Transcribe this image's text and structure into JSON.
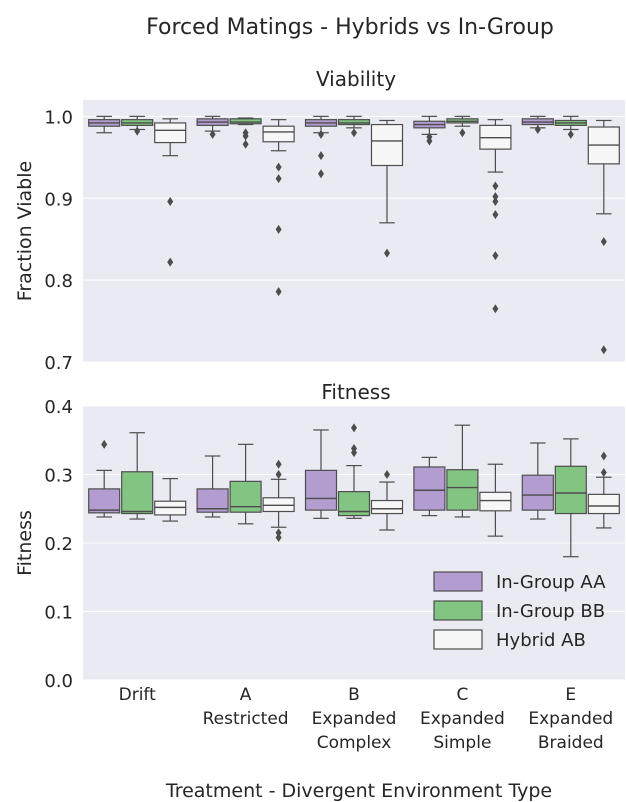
{
  "chart_data": {
    "type": "box",
    "title": "Forced Matings - Hybrids vs In-Group",
    "xlabel": "Treatment - Divergent Environment Type",
    "categories": [
      [
        "Drift"
      ],
      [
        "A",
        "Restricted"
      ],
      [
        "B",
        "Expanded",
        "Complex"
      ],
      [
        "C",
        "Expanded",
        "Simple"
      ],
      [
        "E",
        "Expanded",
        "Braided"
      ]
    ],
    "legend": {
      "placement": "lower-right",
      "entries": [
        "In-Group AA",
        "In-Group BB",
        "Hybrid AB"
      ]
    },
    "colors": {
      "aa": "#b39cd0",
      "bb": "#82c582",
      "ab": "#f7f7f7",
      "background": "#eaeaf2",
      "line": "#4d4d4d"
    },
    "subplots": [
      {
        "title": "Viability",
        "ylabel": "Fraction Viable",
        "ylim": [
          0.7,
          1.02
        ],
        "yticks": [
          "0.7",
          "0.8",
          "0.9",
          "1.0"
        ],
        "series": [
          {
            "name": "In-Group AA",
            "boxes": [
              {
                "whislo": 0.98,
                "q1": 0.988,
                "med": 0.992,
                "q3": 0.996,
                "whishi": 1.0,
                "fliers": []
              },
              {
                "whislo": 0.982,
                "q1": 0.989,
                "med": 0.993,
                "q3": 0.997,
                "whishi": 1.0,
                "fliers": [
                  0.978
                ]
              },
              {
                "whislo": 0.98,
                "q1": 0.988,
                "med": 0.992,
                "q3": 0.996,
                "whishi": 1.0,
                "fliers": [
                  0.978,
                  0.952,
                  0.93
                ]
              },
              {
                "whislo": 0.978,
                "q1": 0.986,
                "med": 0.99,
                "q3": 0.994,
                "whishi": 1.0,
                "fliers": [
                  0.975,
                  0.97
                ]
              },
              {
                "whislo": 0.986,
                "q1": 0.99,
                "med": 0.993,
                "q3": 0.997,
                "whishi": 1.0,
                "fliers": [
                  0.984
                ]
              }
            ]
          },
          {
            "name": "In-Group BB",
            "boxes": [
              {
                "whislo": 0.984,
                "q1": 0.989,
                "med": 0.992,
                "q3": 0.996,
                "whishi": 1.0,
                "fliers": [
                  0.982
                ]
              },
              {
                "whislo": 0.99,
                "q1": 0.991,
                "med": 0.993,
                "q3": 0.997,
                "whishi": 0.998,
                "fliers": [
                  0.98,
                  0.976,
                  0.966
                ]
              },
              {
                "whislo": 0.986,
                "q1": 0.99,
                "med": 0.992,
                "q3": 0.996,
                "whishi": 1.0,
                "fliers": [
                  0.98
                ]
              },
              {
                "whislo": 0.988,
                "q1": 0.992,
                "med": 0.994,
                "q3": 0.997,
                "whishi": 1.0,
                "fliers": [
                  0.98
                ]
              },
              {
                "whislo": 0.984,
                "q1": 0.989,
                "med": 0.992,
                "q3": 0.995,
                "whishi": 1.0,
                "fliers": [
                  0.978
                ]
              }
            ]
          },
          {
            "name": "Hybrid AB",
            "boxes": [
              {
                "whislo": 0.952,
                "q1": 0.968,
                "med": 0.983,
                "q3": 0.992,
                "whishi": 0.997,
                "fliers": [
                  0.896,
                  0.822
                ]
              },
              {
                "whislo": 0.958,
                "q1": 0.969,
                "med": 0.981,
                "q3": 0.988,
                "whishi": 0.996,
                "fliers": [
                  0.938,
                  0.924,
                  0.862,
                  0.786
                ]
              },
              {
                "whislo": 0.87,
                "q1": 0.94,
                "med": 0.97,
                "q3": 0.99,
                "whishi": 0.995,
                "fliers": [
                  0.833
                ]
              },
              {
                "whislo": 0.932,
                "q1": 0.96,
                "med": 0.974,
                "q3": 0.989,
                "whishi": 0.996,
                "fliers": [
                  0.915,
                  0.902,
                  0.896,
                  0.88,
                  0.83,
                  0.765
                ]
              },
              {
                "whislo": 0.881,
                "q1": 0.942,
                "med": 0.965,
                "q3": 0.987,
                "whishi": 0.995,
                "fliers": [
                  0.847,
                  0.715
                ]
              }
            ]
          }
        ]
      },
      {
        "title": "Fitness",
        "ylabel": "Fitness",
        "ylim": [
          0.0,
          0.4
        ],
        "yticks": [
          "0.0",
          "0.1",
          "0.2",
          "0.3",
          "0.4"
        ],
        "series": [
          {
            "name": "In-Group AA",
            "boxes": [
              {
                "whislo": 0.238,
                "q1": 0.244,
                "med": 0.248,
                "q3": 0.279,
                "whishi": 0.306,
                "fliers": [
                  0.344
                ]
              },
              {
                "whislo": 0.238,
                "q1": 0.245,
                "med": 0.25,
                "q3": 0.279,
                "whishi": 0.327,
                "fliers": []
              },
              {
                "whislo": 0.236,
                "q1": 0.248,
                "med": 0.265,
                "q3": 0.306,
                "whishi": 0.365,
                "fliers": []
              },
              {
                "whislo": 0.24,
                "q1": 0.248,
                "med": 0.277,
                "q3": 0.311,
                "whishi": 0.325,
                "fliers": []
              },
              {
                "whislo": 0.235,
                "q1": 0.248,
                "med": 0.27,
                "q3": 0.299,
                "whishi": 0.346,
                "fliers": []
              }
            ]
          },
          {
            "name": "In-Group BB",
            "boxes": [
              {
                "whislo": 0.235,
                "q1": 0.243,
                "med": 0.246,
                "q3": 0.304,
                "whishi": 0.361,
                "fliers": []
              },
              {
                "whislo": 0.228,
                "q1": 0.245,
                "med": 0.253,
                "q3": 0.29,
                "whishi": 0.344,
                "fliers": []
              },
              {
                "whislo": 0.236,
                "q1": 0.24,
                "med": 0.246,
                "q3": 0.275,
                "whishi": 0.313,
                "fliers": [
                  0.368,
                  0.338,
                  0.332
                ]
              },
              {
                "whislo": 0.238,
                "q1": 0.248,
                "med": 0.281,
                "q3": 0.307,
                "whishi": 0.372,
                "fliers": []
              },
              {
                "whislo": 0.18,
                "q1": 0.243,
                "med": 0.273,
                "q3": 0.312,
                "whishi": 0.352,
                "fliers": []
              }
            ]
          },
          {
            "name": "Hybrid AB",
            "boxes": [
              {
                "whislo": 0.232,
                "q1": 0.241,
                "med": 0.252,
                "q3": 0.261,
                "whishi": 0.294,
                "fliers": []
              },
              {
                "whislo": 0.223,
                "q1": 0.246,
                "med": 0.255,
                "q3": 0.266,
                "whishi": 0.293,
                "fliers": [
                  0.315,
                  0.3,
                  0.215,
                  0.208
                ]
              },
              {
                "whislo": 0.219,
                "q1": 0.243,
                "med": 0.25,
                "q3": 0.262,
                "whishi": 0.289,
                "fliers": [
                  0.3
                ]
              },
              {
                "whislo": 0.21,
                "q1": 0.247,
                "med": 0.262,
                "q3": 0.274,
                "whishi": 0.315,
                "fliers": []
              },
              {
                "whislo": 0.222,
                "q1": 0.243,
                "med": 0.254,
                "q3": 0.271,
                "whishi": 0.296,
                "fliers": [
                  0.327,
                  0.303
                ]
              }
            ]
          }
        ]
      }
    ]
  }
}
